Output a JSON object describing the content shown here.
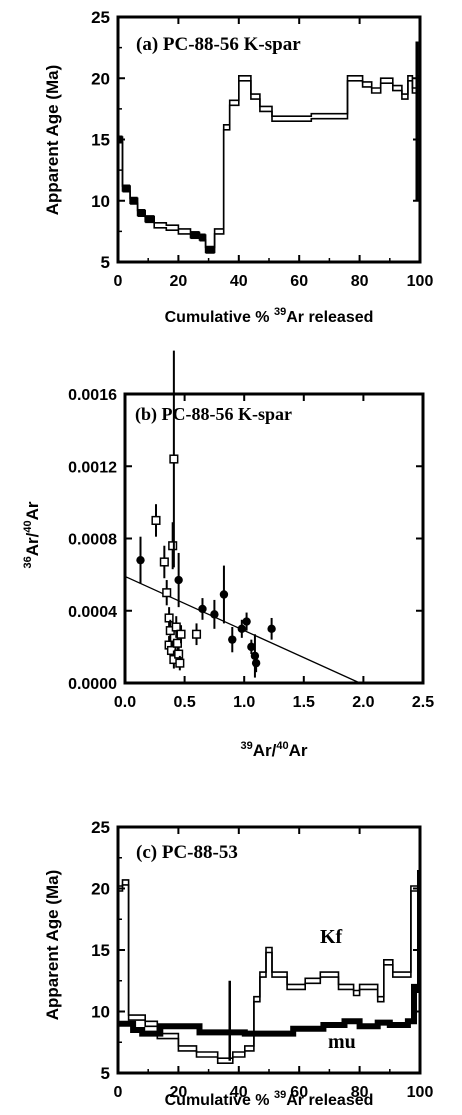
{
  "chart_data": [
    {
      "type": "line",
      "title": "(a) PC-88-56 K-spar",
      "ylabel": "Apparent Age (Ma)",
      "xlabel_prefix": "Cumulative % ",
      "xlabel_sup": "39",
      "xlabel_suffix": "Ar released",
      "xlim": [
        0,
        100
      ],
      "ylim": [
        5,
        25
      ],
      "xticks": [
        0,
        20,
        40,
        60,
        80,
        100
      ],
      "yticks": [
        5,
        10,
        15,
        20,
        25
      ],
      "series": [
        {
          "x": [
            0,
            1.5,
            1.5,
            4,
            4,
            6.5,
            6.5,
            9,
            9,
            12,
            12,
            16,
            16,
            20,
            20,
            24,
            24,
            27,
            27,
            29,
            29,
            32,
            32,
            35,
            35,
            37,
            37,
            40,
            40,
            44,
            44,
            47,
            47,
            51,
            51,
            64,
            64,
            76,
            76,
            81,
            81,
            84,
            84,
            87,
            87,
            91,
            91,
            94,
            94,
            96,
            96,
            97.5,
            97.5,
            99,
            99,
            100
          ],
          "y": [
            15,
            15,
            11,
            11,
            10,
            10,
            9,
            9,
            8.5,
            8.5,
            8,
            8,
            7.8,
            7.8,
            7.5,
            7.5,
            7.2,
            7.2,
            7,
            7,
            6,
            6,
            7.5,
            7.5,
            16,
            16,
            18,
            18,
            20,
            20,
            18.5,
            18.5,
            17.5,
            17.5,
            16.7,
            16.7,
            16.9,
            16.9,
            20,
            20,
            19.5,
            19.5,
            19,
            19,
            19.8,
            19.8,
            19.2,
            19.2,
            18.5,
            18.5,
            20,
            20,
            19,
            19,
            20,
            20
          ]
        }
      ]
    },
    {
      "type": "scatter",
      "title": "(b) PC-88-56 K-spar",
      "ylabel_sup1": "36",
      "ylabel_mid": "Ar/",
      "ylabel_sup2": "40",
      "ylabel_end": "Ar",
      "xlabel_sup1": "39",
      "xlabel_mid": "Ar/",
      "xlabel_sup2": "40",
      "xlabel_end": "Ar",
      "xlim": [
        0,
        2.5
      ],
      "ylim": [
        0,
        0.0016
      ],
      "xticks": [
        "0.0",
        "0.5",
        "1.0",
        "1.5",
        "2.0",
        "2.5"
      ],
      "yticks": [
        "0.0000",
        "0.0004",
        "0.0008",
        "0.0012",
        "0.0016"
      ],
      "series": [
        {
          "marker": "filled-circle",
          "points": [
            [
              0.13,
              0.00068,
              0.00013
            ],
            [
              0.45,
              0.00057,
              0.00015
            ],
            [
              0.65,
              0.00041,
              6e-05
            ],
            [
              0.75,
              0.00038,
              8e-05
            ],
            [
              0.83,
              0.00049,
              0.00016
            ],
            [
              0.9,
              0.00024,
              7e-05
            ],
            [
              0.98,
              0.0003,
              5e-05
            ],
            [
              1.02,
              0.00034,
              5e-05
            ],
            [
              1.06,
              0.0002,
              4e-05
            ],
            [
              1.09,
              0.00015,
              0.00012
            ],
            [
              1.1,
              0.00011,
              5e-05
            ],
            [
              1.23,
              0.0003,
              6e-05
            ]
          ]
        },
        {
          "marker": "open-square",
          "points": [
            [
              0.26,
              0.0009,
              9e-05
            ],
            [
              0.33,
              0.00067,
              9e-05
            ],
            [
              0.35,
              0.0005,
              7e-05
            ],
            [
              0.37,
              0.00036,
              6e-05
            ],
            [
              0.38,
              0.00029,
              6e-05
            ],
            [
              0.37,
              0.00021,
              5e-05
            ],
            [
              0.39,
              0.00018,
              5e-05
            ],
            [
              0.4,
              0.00076,
              0.00013
            ],
            [
              0.41,
              0.00124,
              0.0006
            ],
            [
              0.41,
              0.00013,
              5e-05
            ],
            [
              0.43,
              0.00031,
              6e-05
            ],
            [
              0.44,
              0.00022,
              5e-05
            ],
            [
              0.45,
              0.00016,
              4e-05
            ],
            [
              0.47,
              0.00027,
              5e-05
            ],
            [
              0.46,
              0.00011,
              4e-05
            ],
            [
              0.6,
              0.00027,
              6e-05
            ]
          ]
        }
      ],
      "fit_line": {
        "x": [
          0,
          1.97
        ],
        "y": [
          0.00059,
          0
        ]
      }
    },
    {
      "type": "line",
      "title": "(c) PC-88-53",
      "ylabel": "Apparent Age (Ma)",
      "xlabel_prefix": "Cumulative % ",
      "xlabel_sup": "39",
      "xlabel_suffix": "Ar released",
      "xlim": [
        0,
        100
      ],
      "ylim": [
        5,
        25
      ],
      "xticks": [
        0,
        20,
        40,
        60,
        80,
        100
      ],
      "yticks": [
        5,
        10,
        15,
        20,
        25
      ],
      "series": [
        {
          "name": "Kf",
          "x": [
            0,
            1.5,
            1.5,
            3.5,
            3.5,
            9,
            9,
            13,
            13,
            20,
            20,
            26,
            26,
            33,
            33,
            38,
            38,
            42,
            42,
            45,
            45,
            47,
            47,
            49,
            49,
            51,
            51,
            56,
            56,
            62,
            62,
            67,
            67,
            73,
            73,
            78,
            78,
            80,
            80,
            86,
            86,
            88,
            88,
            91,
            91,
            97,
            97,
            99,
            99,
            100
          ],
          "y": [
            20,
            20,
            20.5,
            20.5,
            9.5,
            9.5,
            9,
            9,
            8,
            8,
            7,
            7,
            6.5,
            6.5,
            6,
            6,
            6.5,
            6.5,
            7,
            7,
            11,
            11,
            13,
            13,
            15,
            15,
            13,
            13,
            12,
            12,
            12.5,
            12.5,
            13,
            13,
            12,
            12,
            11.5,
            11.5,
            12,
            12,
            11,
            11,
            14,
            14,
            13,
            13,
            20,
            20,
            20,
            20
          ]
        },
        {
          "name": "mu",
          "x": [
            0,
            5,
            5,
            8,
            8,
            14,
            14,
            27,
            27,
            42,
            42,
            58,
            58,
            68,
            68,
            75,
            75,
            80,
            80,
            86,
            86,
            90,
            90,
            96,
            96,
            98,
            98,
            100
          ],
          "y": [
            9,
            9,
            8.5,
            8.5,
            8.2,
            8.2,
            8.8,
            8.8,
            8.3,
            8.3,
            8.2,
            8.2,
            8.6,
            8.6,
            8.9,
            8.9,
            9.2,
            9.2,
            8.8,
            8.8,
            9.1,
            9.1,
            8.9,
            8.9,
            9.2,
            9.2,
            12,
            12
          ]
        }
      ],
      "annotations": {
        "kf": "Kf",
        "mu": "mu"
      }
    }
  ]
}
